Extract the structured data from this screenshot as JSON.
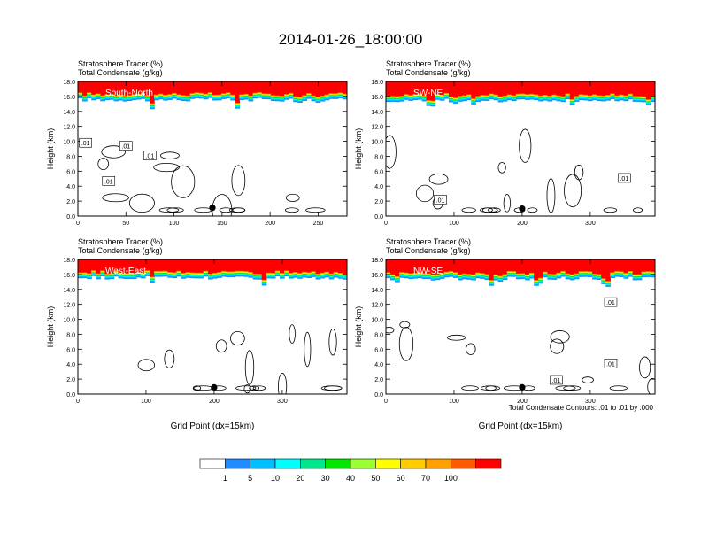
{
  "figure": {
    "title": "2014-01-26_18:00:00",
    "contour_note": "Total Condensate Contours: .01 to .01 by .000"
  },
  "colorbar": {
    "labels": [
      "1",
      "5",
      "10",
      "20",
      "30",
      "40",
      "50",
      "60",
      "70",
      "100"
    ],
    "colors": [
      "#ffffff",
      "#1e8cff",
      "#00bfff",
      "#00ffff",
      "#00e68c",
      "#00e600",
      "#9bff32",
      "#ffff00",
      "#ffcc00",
      "#ffa000",
      "#ff5a00",
      "#ff0000"
    ]
  },
  "chart_data": [
    {
      "type": "heatmap",
      "panel": "top-left",
      "section_label": "South-North",
      "title_lines": [
        "Stratosphere Tracer   (%)",
        "Total Condensate   (g/kg)"
      ],
      "ylabel": "Height (km)",
      "xlabel": "",
      "xlim": [
        0,
        280
      ],
      "ylim": [
        0,
        18
      ],
      "xticks": [
        0,
        50,
        100,
        150,
        200,
        250
      ],
      "yticks": [
        0,
        2,
        4,
        6,
        8,
        10,
        12,
        14,
        16,
        18
      ],
      "tracer_base_km": 15.6,
      "tracer_top_value_pct": 100,
      "contour_labels": [
        {
          "text": ".01",
          "x": 8,
          "y": 9.8
        },
        {
          "text": ".01",
          "x": 50,
          "y": 9.4
        },
        {
          "text": ".01",
          "x": 75,
          "y": 8.1
        },
        {
          "text": ".01",
          "x": 32,
          "y": 4.7
        }
      ],
      "marker": {
        "x": 140,
        "y": 1.1
      }
    },
    {
      "type": "heatmap",
      "panel": "top-right",
      "section_label": "SW-NE",
      "title_lines": [
        "Stratosphere Tracer   (%)",
        "Total Condensate   (g/kg)"
      ],
      "ylabel": "Height (km)",
      "xlabel": "",
      "xlim": [
        0,
        395
      ],
      "ylim": [
        0,
        18
      ],
      "xticks": [
        0,
        100,
        200,
        300
      ],
      "yticks": [
        0,
        2,
        4,
        6,
        8,
        10,
        12,
        14,
        16,
        18
      ],
      "tracer_base_km": 15.5,
      "tracer_top_value_pct": 100,
      "contour_labels": [
        {
          "text": ".01",
          "x": 80,
          "y": 2.2
        },
        {
          "text": ".01",
          "x": 350,
          "y": 5.1
        }
      ],
      "marker": {
        "x": 200,
        "y": 1.0
      }
    },
    {
      "type": "heatmap",
      "panel": "bottom-left",
      "section_label": "West-East",
      "title_lines": [
        "Stratosphere Tracer   (%)",
        "Total Condensate   (g/kg)"
      ],
      "ylabel": "Height (km)",
      "xlabel": "Grid Point (dx=15km)",
      "xlim": [
        0,
        395
      ],
      "ylim": [
        0,
        18
      ],
      "xticks": [
        0,
        100,
        200,
        300
      ],
      "yticks": [
        0,
        2,
        4,
        6,
        8,
        10,
        12,
        14,
        16,
        18
      ],
      "tracer_base_km": 15.6,
      "tracer_top_value_pct": 100,
      "contour_labels": [],
      "marker": {
        "x": 200,
        "y": 0.9
      }
    },
    {
      "type": "heatmap",
      "panel": "bottom-right",
      "section_label": "NW-SE",
      "title_lines": [
        "Stratosphere Tracer   (%)",
        "Total Condensate   (g/kg)"
      ],
      "ylabel": "Height (km)",
      "xlabel": "Grid Point (dx=15km)",
      "xlim": [
        0,
        395
      ],
      "ylim": [
        0,
        18
      ],
      "xticks": [
        0,
        100,
        200,
        300
      ],
      "yticks": [
        0,
        2,
        4,
        6,
        8,
        10,
        12,
        14,
        16,
        18
      ],
      "tracer_base_km": 15.5,
      "tracer_top_value_pct": 100,
      "contour_labels": [
        {
          "text": ".01",
          "x": 330,
          "y": 12.3
        },
        {
          "text": ".01",
          "x": 330,
          "y": 4.1
        },
        {
          "text": ".01",
          "x": 250,
          "y": 1.9
        }
      ],
      "marker": {
        "x": 200,
        "y": 0.9
      }
    }
  ]
}
